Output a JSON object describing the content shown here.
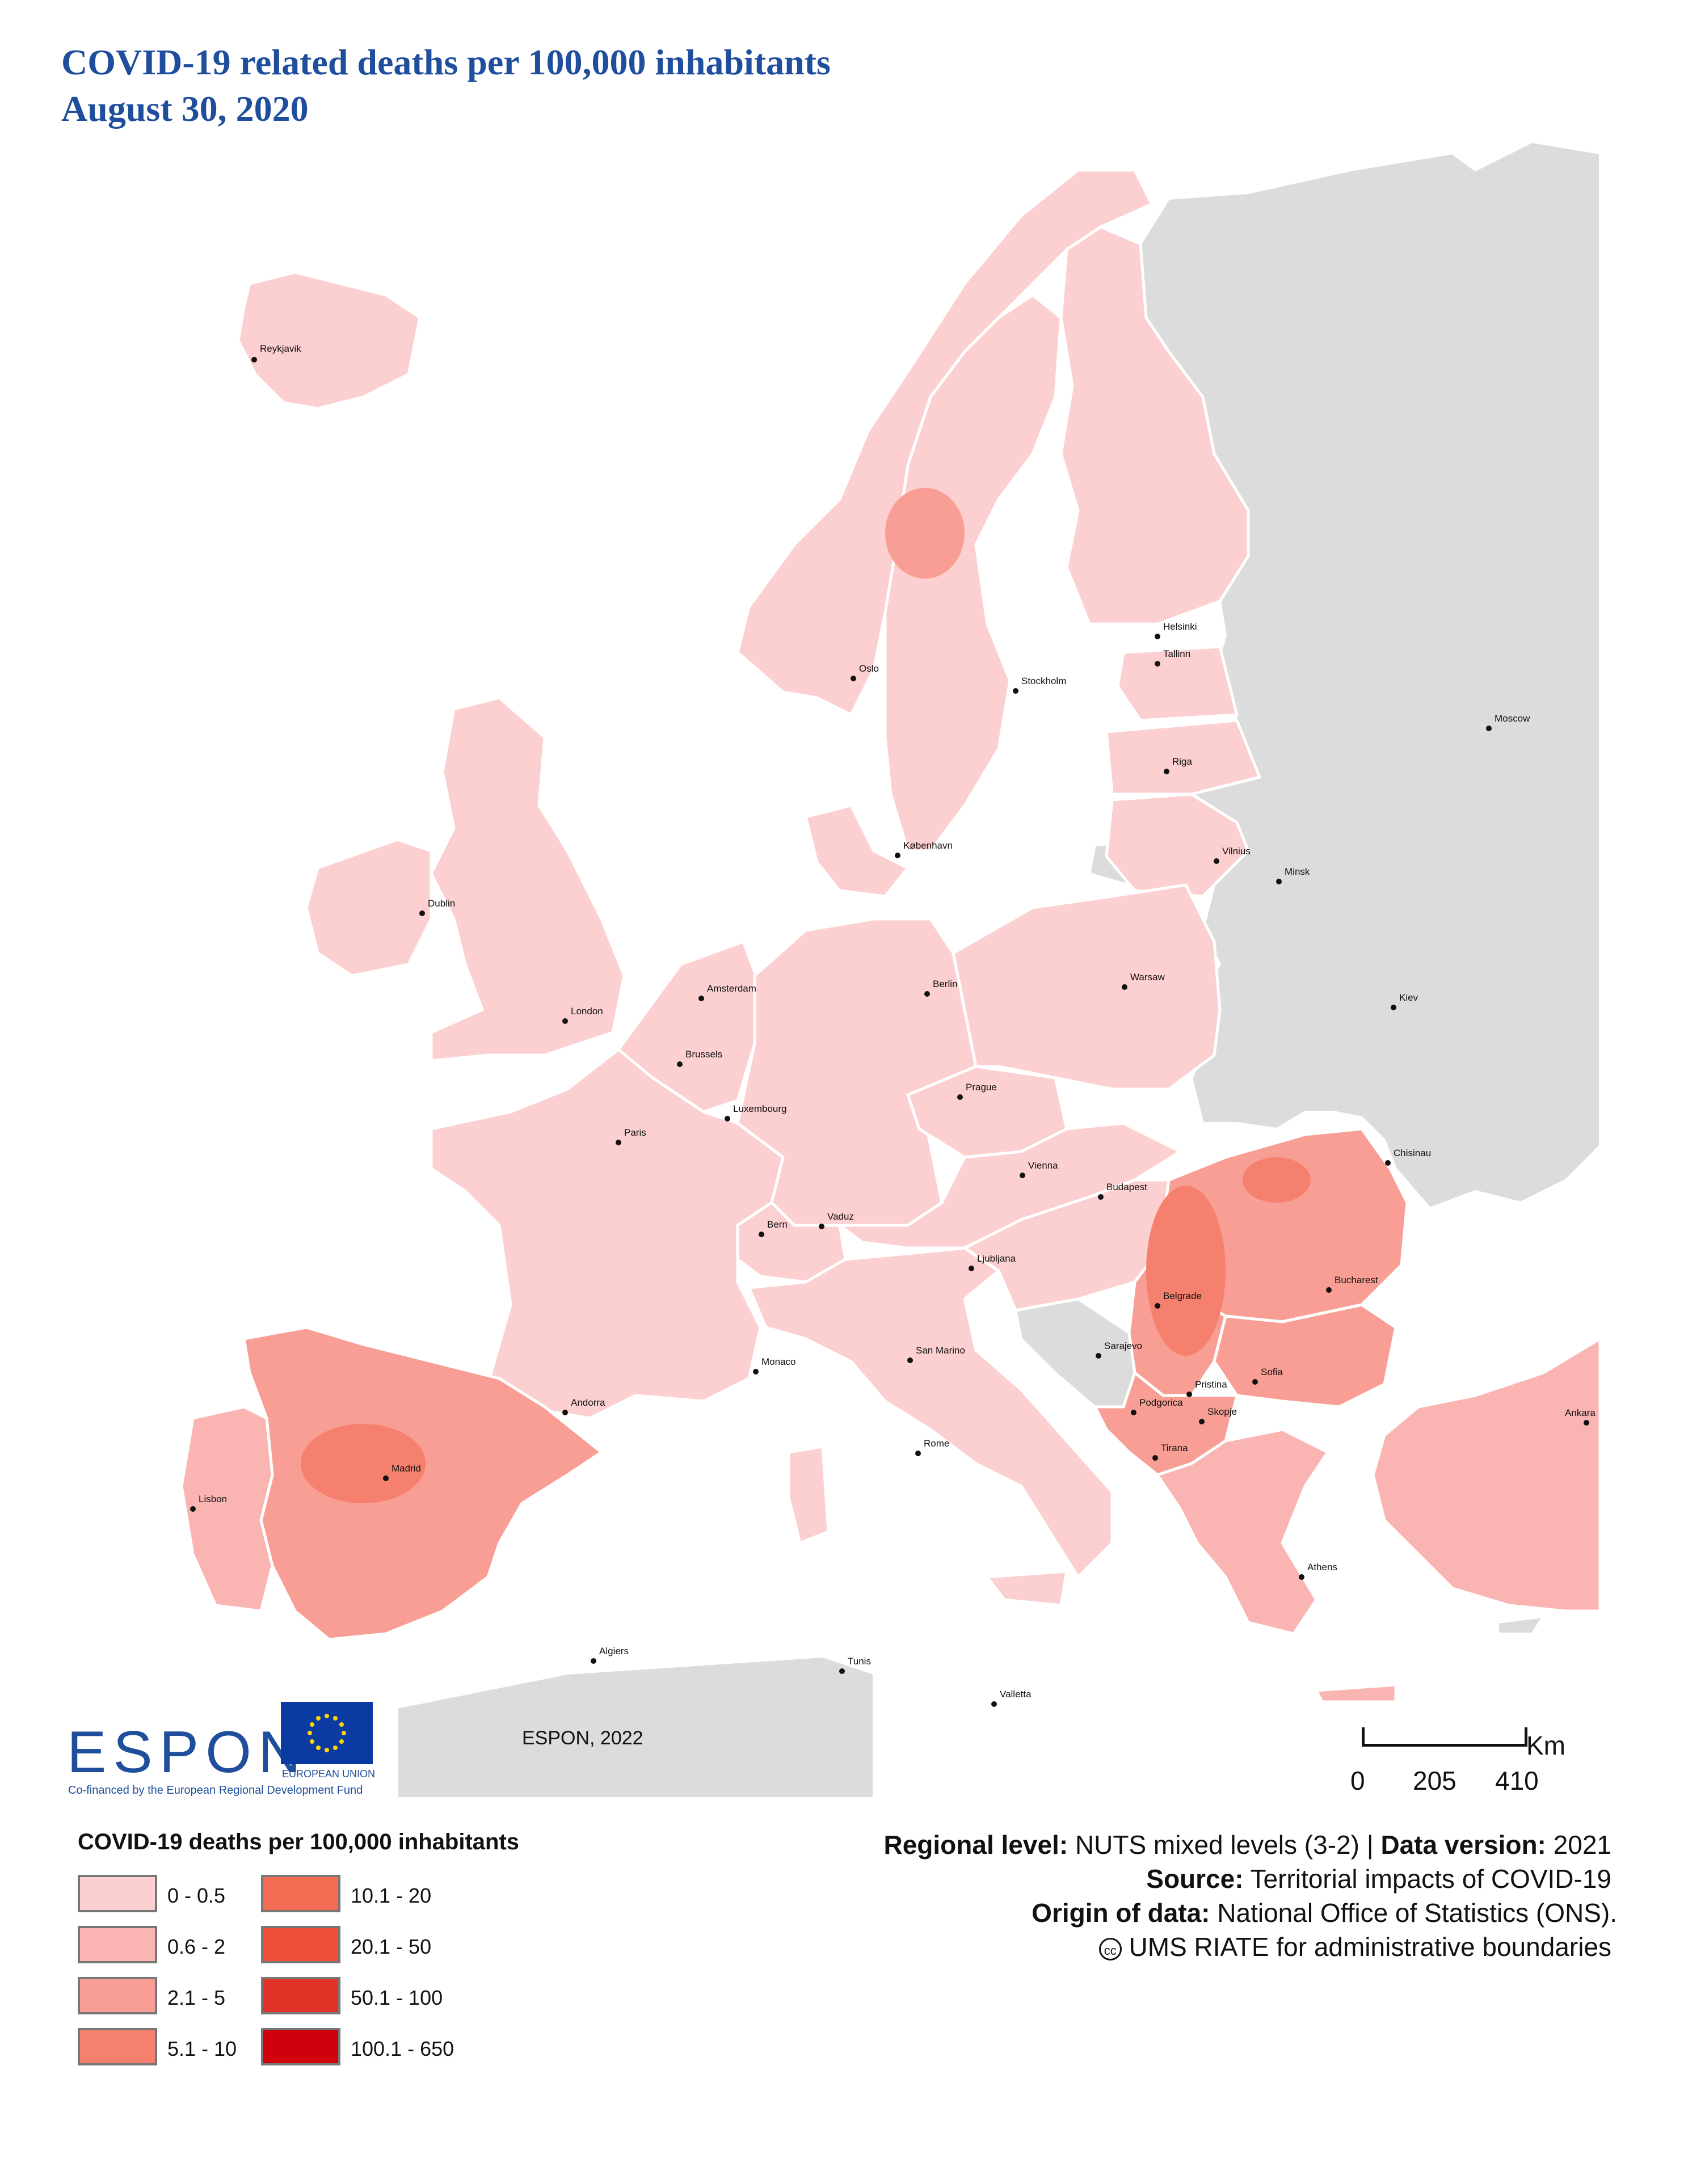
{
  "title": {
    "line1": "COVID-19 related deaths per 100,000 inhabitants",
    "line2": "August 30, 2020"
  },
  "colors": {
    "sea": "#ffffff",
    "non_data": "#dcdcdc",
    "class_1": "#fccfd0",
    "class_2": "#fab4b2",
    "class_3": "#f89e94",
    "class_4": "#f5806d",
    "class_5": "#f26c54",
    "class_6": "#ec4f3a",
    "class_7": "#e13328",
    "class_8": "#d0000c",
    "title_blue": "#1f4e9c"
  },
  "cities": [
    {
      "name": "Reykjavik"
    },
    {
      "name": "Oslo"
    },
    {
      "name": "Stockholm"
    },
    {
      "name": "Helsinki"
    },
    {
      "name": "Tallinn"
    },
    {
      "name": "Moscow"
    },
    {
      "name": "Riga"
    },
    {
      "name": "København"
    },
    {
      "name": "Vilnius"
    },
    {
      "name": "Minsk"
    },
    {
      "name": "Dublin"
    },
    {
      "name": "Amsterdam"
    },
    {
      "name": "Berlin"
    },
    {
      "name": "Warsaw"
    },
    {
      "name": "London"
    },
    {
      "name": "Kiev"
    },
    {
      "name": "Brussels"
    },
    {
      "name": "Prague"
    },
    {
      "name": "Luxembourg"
    },
    {
      "name": "Paris"
    },
    {
      "name": "Chisinau"
    },
    {
      "name": "Vienna"
    },
    {
      "name": "Budapest"
    },
    {
      "name": "Bern"
    },
    {
      "name": "Vaduz"
    },
    {
      "name": "Ljubljana"
    },
    {
      "name": "Bucharest"
    },
    {
      "name": "Belgrade"
    },
    {
      "name": "Sarajevo"
    },
    {
      "name": "San Marino"
    },
    {
      "name": "Monaco"
    },
    {
      "name": "Pristina"
    },
    {
      "name": "Sofia"
    },
    {
      "name": "Andorra"
    },
    {
      "name": "Podgorica"
    },
    {
      "name": "Skopje"
    },
    {
      "name": "Ankara"
    },
    {
      "name": "Madrid"
    },
    {
      "name": "Rome"
    },
    {
      "name": "Tirana"
    },
    {
      "name": "Lisbon"
    },
    {
      "name": "Athens"
    },
    {
      "name": "Algiers"
    },
    {
      "name": "Tunis"
    },
    {
      "name": "Valletta"
    }
  ],
  "logos": {
    "espon": "ESPON",
    "espon_sub": "Co-financed by the European Regional Development Fund",
    "eu_label": "EUROPEAN UNION",
    "credit": "ESPON, 2022"
  },
  "scale": {
    "unit": "Km",
    "ticks": [
      "0",
      "205",
      "410"
    ]
  },
  "legend": {
    "title": "COVID-19 deaths per 100,000 inhabitants",
    "classes": [
      {
        "label": "0 - 0.5",
        "color": "#fccfd0"
      },
      {
        "label": "0.6 - 2",
        "color": "#fab4b2"
      },
      {
        "label": "2.1 - 5",
        "color": "#f89e94"
      },
      {
        "label": "5.1 - 10",
        "color": "#f5806d"
      },
      {
        "label": "10.1 - 20",
        "color": "#f26c54"
      },
      {
        "label": "20.1 - 50",
        "color": "#ec4f3a"
      },
      {
        "label": "50.1 - 100",
        "color": "#e13328"
      },
      {
        "label": "100.1 - 650",
        "color": "#d0000c"
      }
    ]
  },
  "meta": {
    "regional_level_label": "Regional level:",
    "regional_level_value": "NUTS mixed levels (3-2)",
    "separator": "|",
    "data_version_label": "Data version:",
    "data_version_value": "2021",
    "source_label": "Source:",
    "source_value": "Territorial impacts of COVID-19",
    "origin_label": "Origin of data:",
    "origin_value": "National Office of Statistics (ONS).",
    "cc_symbol": "cc",
    "boundaries": "UMS RIATE for administrative boundaries"
  }
}
